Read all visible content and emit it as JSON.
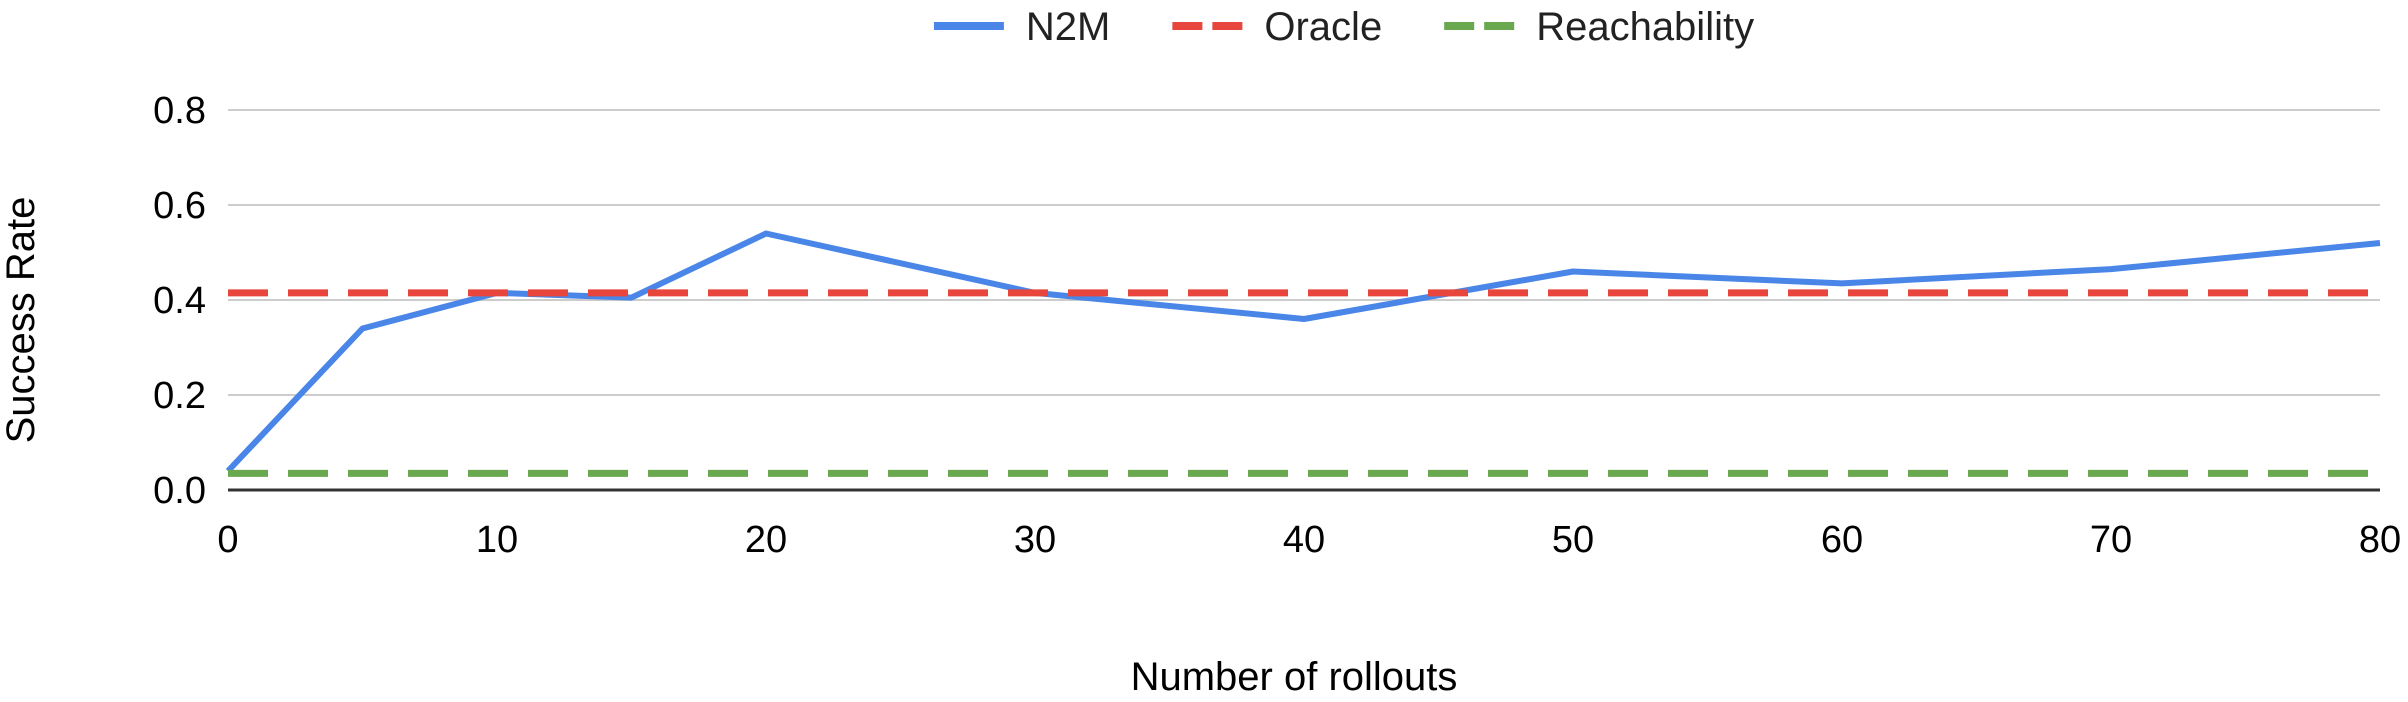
{
  "chart_data": {
    "type": "line",
    "xlabel": "Number of rollouts",
    "ylabel": "Success Rate",
    "xlim": [
      0,
      80
    ],
    "ylim": [
      0,
      0.8
    ],
    "x_ticks": [
      "0",
      "10",
      "20",
      "30",
      "40",
      "50",
      "60",
      "70",
      "80"
    ],
    "y_ticks": [
      "0.0",
      "0.2",
      "0.4",
      "0.6",
      "0.8"
    ],
    "grid": true,
    "legend_position": "top",
    "series": [
      {
        "name": "N2M",
        "color": "#4a86e8",
        "style": "solid",
        "x": [
          0,
          5,
          10,
          15,
          20,
          30,
          40,
          50,
          60,
          70,
          80
        ],
        "y": [
          0.04,
          0.34,
          0.415,
          0.405,
          0.54,
          0.415,
          0.36,
          0.46,
          0.435,
          0.465,
          0.52
        ]
      },
      {
        "name": "Oracle",
        "color": "#e8453c",
        "style": "dashed",
        "x": [
          0,
          80
        ],
        "y": [
          0.415,
          0.415
        ]
      },
      {
        "name": "Reachability",
        "color": "#6aa84f",
        "style": "dashed",
        "x": [
          0,
          80
        ],
        "y": [
          0.035,
          0.035
        ]
      }
    ]
  }
}
